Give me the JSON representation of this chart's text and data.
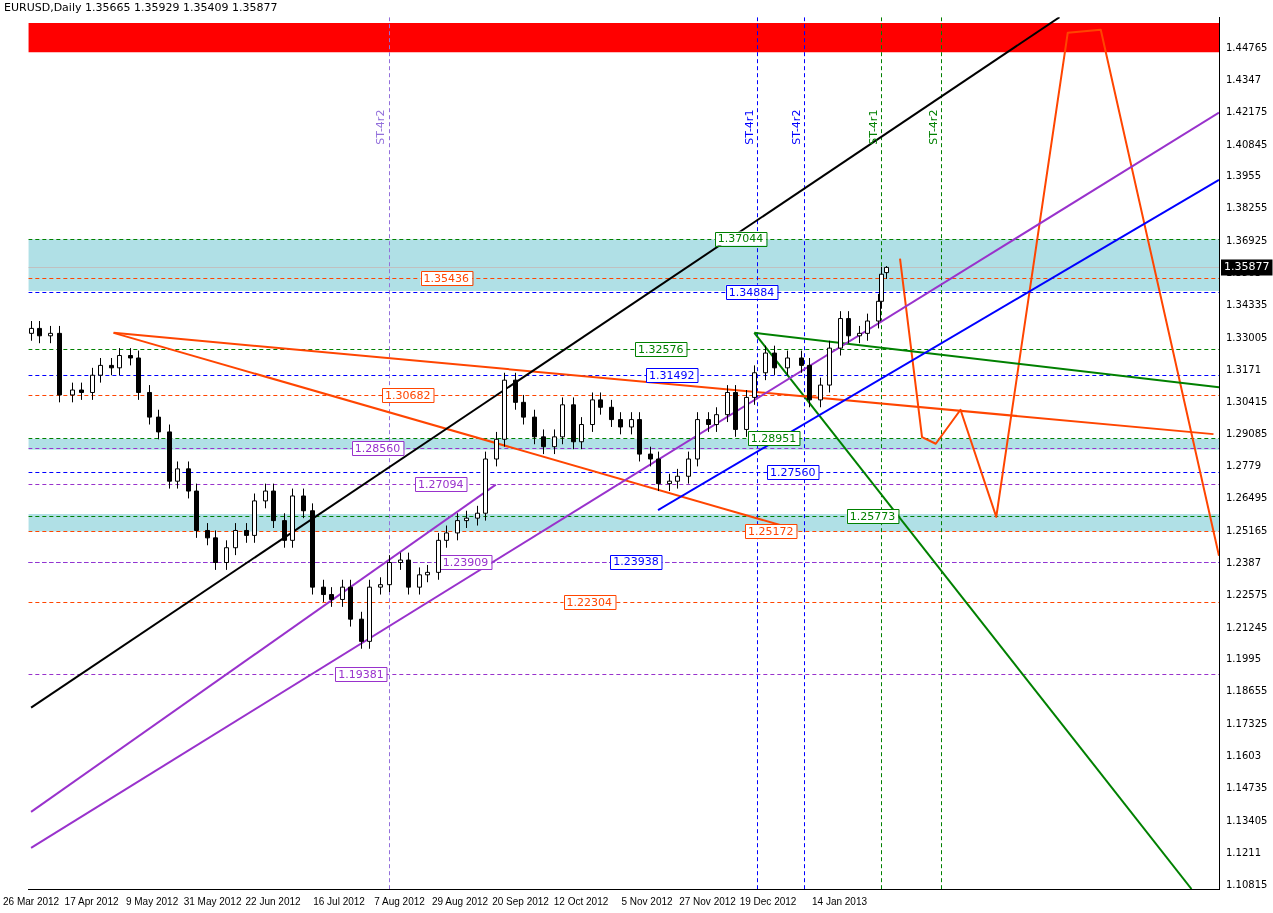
{
  "chart_data": {
    "type": "candlestick",
    "title": "EURUSD,Daily 1.35665 1.35929 1.35409 1.35877",
    "x": [
      "2012-03-26",
      "2012-03-29",
      "2012-04-02",
      "2012-04-05",
      "2012-04-10",
      "2012-04-13",
      "2012-04-17",
      "2012-04-20",
      "2012-04-24",
      "2012-04-27",
      "2012-05-01",
      "2012-05-04",
      "2012-05-08",
      "2012-05-11",
      "2012-05-15",
      "2012-05-18",
      "2012-05-22",
      "2012-05-25",
      "2012-05-29",
      "2012-06-01",
      "2012-06-05",
      "2012-06-08",
      "2012-06-12",
      "2012-06-15",
      "2012-06-19",
      "2012-06-22",
      "2012-06-26",
      "2012-06-29",
      "2012-07-03",
      "2012-07-06",
      "2012-07-10",
      "2012-07-13",
      "2012-07-17",
      "2012-07-20",
      "2012-07-24",
      "2012-07-27",
      "2012-07-31",
      "2012-08-03",
      "2012-08-07",
      "2012-08-10",
      "2012-08-14",
      "2012-08-17",
      "2012-08-21",
      "2012-08-24",
      "2012-08-28",
      "2012-08-31",
      "2012-09-04",
      "2012-09-07",
      "2012-09-11",
      "2012-09-14",
      "2012-09-18",
      "2012-09-21",
      "2012-09-25",
      "2012-09-28",
      "2012-10-02",
      "2012-10-05",
      "2012-10-09",
      "2012-10-12",
      "2012-10-16",
      "2012-10-19",
      "2012-10-23",
      "2012-10-26",
      "2012-10-30",
      "2012-11-02",
      "2012-11-06",
      "2012-11-09",
      "2012-11-13",
      "2012-11-16",
      "2012-11-20",
      "2012-11-23",
      "2012-11-27",
      "2012-11-30",
      "2012-12-04",
      "2012-12-07",
      "2012-12-11",
      "2012-12-14",
      "2012-12-18",
      "2012-12-21",
      "2012-12-26",
      "2012-12-31",
      "2013-01-03",
      "2013-01-07",
      "2013-01-10",
      "2013-01-14",
      "2013-01-17",
      "2013-01-21",
      "2013-01-24",
      "2013-01-28",
      "2013-01-29",
      "2013-01-31"
    ],
    "ohlc": [
      [
        1.332,
        1.337,
        1.329,
        1.334
      ],
      [
        1.334,
        1.337,
        1.328,
        1.331
      ],
      [
        1.331,
        1.335,
        1.328,
        1.332
      ],
      [
        1.332,
        1.335,
        1.304,
        1.307
      ],
      [
        1.307,
        1.312,
        1.304,
        1.309
      ],
      [
        1.309,
        1.312,
        1.305,
        1.308
      ],
      [
        1.308,
        1.318,
        1.305,
        1.315
      ],
      [
        1.315,
        1.322,
        1.312,
        1.319
      ],
      [
        1.319,
        1.322,
        1.315,
        1.318
      ],
      [
        1.318,
        1.326,
        1.315,
        1.323
      ],
      [
        1.323,
        1.326,
        1.319,
        1.322
      ],
      [
        1.322,
        1.325,
        1.305,
        1.308
      ],
      [
        1.308,
        1.311,
        1.295,
        1.298
      ],
      [
        1.298,
        1.301,
        1.289,
        1.292
      ],
      [
        1.292,
        1.295,
        1.269,
        1.272
      ],
      [
        1.272,
        1.28,
        1.269,
        1.277
      ],
      [
        1.277,
        1.28,
        1.265,
        1.268
      ],
      [
        1.268,
        1.271,
        1.249,
        1.252
      ],
      [
        1.252,
        1.255,
        1.246,
        1.249
      ],
      [
        1.249,
        1.252,
        1.236,
        1.239
      ],
      [
        1.239,
        1.248,
        1.236,
        1.245
      ],
      [
        1.245,
        1.255,
        1.242,
        1.252
      ],
      [
        1.252,
        1.255,
        1.247,
        1.25
      ],
      [
        1.25,
        1.267,
        1.247,
        1.264
      ],
      [
        1.264,
        1.271,
        1.261,
        1.268
      ],
      [
        1.268,
        1.271,
        1.253,
        1.256
      ],
      [
        1.256,
        1.259,
        1.245,
        1.248
      ],
      [
        1.248,
        1.269,
        1.245,
        1.266
      ],
      [
        1.266,
        1.269,
        1.257,
        1.26
      ],
      [
        1.26,
        1.263,
        1.226,
        1.229
      ],
      [
        1.229,
        1.232,
        1.223,
        1.226
      ],
      [
        1.226,
        1.229,
        1.221,
        1.224
      ],
      [
        1.224,
        1.232,
        1.221,
        1.229
      ],
      [
        1.229,
        1.232,
        1.213,
        1.216
      ],
      [
        1.216,
        1.219,
        1.204,
        1.207
      ],
      [
        1.207,
        1.232,
        1.204,
        1.229
      ],
      [
        1.229,
        1.233,
        1.226,
        1.23
      ],
      [
        1.23,
        1.242,
        1.227,
        1.239
      ],
      [
        1.239,
        1.243,
        1.236,
        1.24
      ],
      [
        1.24,
        1.243,
        1.226,
        1.229
      ],
      [
        1.229,
        1.237,
        1.226,
        1.234
      ],
      [
        1.234,
        1.238,
        1.231,
        1.235
      ],
      [
        1.235,
        1.251,
        1.232,
        1.248
      ],
      [
        1.248,
        1.254,
        1.245,
        1.251
      ],
      [
        1.251,
        1.259,
        1.248,
        1.256
      ],
      [
        1.256,
        1.26,
        1.253,
        1.257
      ],
      [
        1.257,
        1.262,
        1.254,
        1.259
      ],
      [
        1.259,
        1.284,
        1.256,
        1.281
      ],
      [
        1.281,
        1.292,
        1.278,
        1.289
      ],
      [
        1.289,
        1.316,
        1.286,
        1.313
      ],
      [
        1.313,
        1.316,
        1.301,
        1.304
      ],
      [
        1.304,
        1.307,
        1.295,
        1.298
      ],
      [
        1.298,
        1.301,
        1.287,
        1.29
      ],
      [
        1.29,
        1.293,
        1.283,
        1.286
      ],
      [
        1.286,
        1.293,
        1.283,
        1.29
      ],
      [
        1.29,
        1.306,
        1.287,
        1.303
      ],
      [
        1.303,
        1.306,
        1.285,
        1.288
      ],
      [
        1.288,
        1.298,
        1.285,
        1.295
      ],
      [
        1.295,
        1.308,
        1.292,
        1.305
      ],
      [
        1.305,
        1.308,
        1.299,
        1.302
      ],
      [
        1.302,
        1.305,
        1.294,
        1.297
      ],
      [
        1.297,
        1.3,
        1.291,
        1.294
      ],
      [
        1.294,
        1.3,
        1.291,
        1.297
      ],
      [
        1.297,
        1.3,
        1.28,
        1.283
      ],
      [
        1.283,
        1.286,
        1.278,
        1.281
      ],
      [
        1.281,
        1.284,
        1.268,
        1.271
      ],
      [
        1.271,
        1.275,
        1.268,
        1.272
      ],
      [
        1.272,
        1.277,
        1.269,
        1.274
      ],
      [
        1.274,
        1.284,
        1.271,
        1.281
      ],
      [
        1.281,
        1.3,
        1.278,
        1.297
      ],
      [
        1.297,
        1.3,
        1.292,
        1.295
      ],
      [
        1.295,
        1.302,
        1.292,
        1.299
      ],
      [
        1.299,
        1.311,
        1.296,
        1.308
      ],
      [
        1.308,
        1.311,
        1.29,
        1.293
      ],
      [
        1.293,
        1.309,
        1.29,
        1.306
      ],
      [
        1.306,
        1.319,
        1.303,
        1.316
      ],
      [
        1.316,
        1.327,
        1.313,
        1.324
      ],
      [
        1.324,
        1.327,
        1.315,
        1.318
      ],
      [
        1.318,
        1.325,
        1.315,
        1.322
      ],
      [
        1.322,
        1.325,
        1.316,
        1.319
      ],
      [
        1.319,
        1.322,
        1.302,
        1.305
      ],
      [
        1.305,
        1.314,
        1.302,
        1.311
      ],
      [
        1.311,
        1.329,
        1.308,
        1.326
      ],
      [
        1.326,
        1.341,
        1.323,
        1.338
      ],
      [
        1.338,
        1.341,
        1.328,
        1.331
      ],
      [
        1.331,
        1.335,
        1.328,
        1.332
      ],
      [
        1.332,
        1.34,
        1.329,
        1.337
      ],
      [
        1.337,
        1.348,
        1.334,
        1.345
      ],
      [
        1.345,
        1.359,
        1.342,
        1.356
      ],
      [
        1.35665,
        1.35929,
        1.35409,
        1.35877
      ]
    ],
    "series": [
      {
        "type": "line",
        "color": "#000000",
        "x": [
          "2012-03-26",
          "2013-04-04"
        ],
        "values": [
          1.1801,
          1.4603
        ]
      },
      {
        "type": "line",
        "color": "#9932cc",
        "x": [
          "2012-03-26",
          "2012-09-11"
        ],
        "values": [
          1.1378,
          1.2706
        ]
      },
      {
        "type": "line",
        "color": "#9932cc",
        "x": [
          "2012-03-26",
          "2013-06-01"
        ],
        "values": [
          1.1232,
          1.4216
        ]
      },
      {
        "type": "line",
        "color": "#0000ff",
        "x": [
          "2012-11-09",
          "2013-06-01"
        ],
        "values": [
          1.2603,
          1.3943
        ]
      },
      {
        "type": "line",
        "color": "#ff4500",
        "x": [
          "2012-04-25",
          "2013-05-30"
        ],
        "values": [
          1.3322,
          1.2911
        ]
      },
      {
        "type": "line",
        "color": "#ff4500",
        "x": [
          "2012-04-25",
          "2012-12-29"
        ],
        "values": [
          1.3322,
          1.2524
        ]
      },
      {
        "type": "line",
        "color": "#008000",
        "x": [
          "2012-12-14",
          "2013-06-01"
        ],
        "values": [
          1.3322,
          1.3101
        ]
      },
      {
        "type": "line",
        "color": "#008000",
        "x": [
          "2012-12-14",
          "2013-05-22"
        ],
        "values": [
          1.3322,
          1.1065
        ]
      },
      {
        "type": "line",
        "color": "#ff4500",
        "x": [
          "2013-02-05",
          "2013-02-13",
          "2013-02-18",
          "2013-02-27",
          "2013-03-12",
          "2013-04-07",
          "2013-04-19",
          "2013-06-01"
        ],
        "values": [
          1.3623,
          1.2899,
          1.2872,
          1.301,
          1.2575,
          1.454,
          1.4552,
          1.2417
        ]
      }
    ],
    "bands": [
      {
        "axis": "y",
        "from": 1.4461,
        "to": 1.4579,
        "color": "#ff0000"
      },
      {
        "axis": "y",
        "from": 1.3492,
        "to": 1.3702,
        "color": "#b0e0e6"
      },
      {
        "axis": "y",
        "from": 1.2848,
        "to": 1.2892,
        "color": "#b0e0e6"
      },
      {
        "axis": "y",
        "from": 1.2516,
        "to": 1.2587,
        "color": "#b0e0e6"
      }
    ],
    "ref_lines": [
      {
        "axis": "y",
        "value": 1.37044,
        "color": "#008000",
        "line_style": "dashed"
      },
      {
        "axis": "y",
        "value": 1.35436,
        "color": "#ff4500",
        "line_style": "dashed"
      },
      {
        "axis": "y",
        "value": 1.34884,
        "color": "#0000ff",
        "line_style": "dashed"
      },
      {
        "axis": "y",
        "value": 1.32576,
        "color": "#008000",
        "line_style": "dashed"
      },
      {
        "axis": "y",
        "value": 1.31492,
        "color": "#0000ff",
        "line_style": "dashed"
      },
      {
        "axis": "y",
        "value": 1.30682,
        "color": "#ff4500",
        "line_style": "dashed"
      },
      {
        "axis": "y",
        "value": 1.28951,
        "color": "#008000",
        "line_style": "dashed"
      },
      {
        "axis": "y",
        "value": 1.2856,
        "color": "#9932cc",
        "line_style": "dashed"
      },
      {
        "axis": "y",
        "value": 1.2756,
        "color": "#0000ff",
        "line_style": "dashed"
      },
      {
        "axis": "y",
        "value": 1.27094,
        "color": "#9932cc",
        "line_style": "dashed"
      },
      {
        "axis": "y",
        "value": 1.25773,
        "color": "#008000",
        "line_style": "dashed"
      },
      {
        "axis": "y",
        "value": 1.25172,
        "color": "#ff4500",
        "line_style": "dashed"
      },
      {
        "axis": "y",
        "value": 1.23938,
        "color": "#0000ff",
        "line_style": "dashed"
      },
      {
        "axis": "y",
        "value": 1.23909,
        "color": "#9932cc",
        "line_style": "dashed"
      },
      {
        "axis": "y",
        "value": 1.22304,
        "color": "#ff4500",
        "line_style": "dashed"
      },
      {
        "axis": "y",
        "value": 1.19381,
        "color": "#9932cc",
        "line_style": "dashed"
      },
      {
        "axis": "y",
        "value": 1.35877,
        "color": "#c0c0c0",
        "line_style": "solid",
        "label": "1.35877"
      },
      {
        "axis": "x",
        "value": "2012-08-03",
        "color": "#9370db",
        "line_style": "dashed",
        "label": "ST-4r2"
      },
      {
        "axis": "x",
        "value": "2012-12-15",
        "color": "#0000ff",
        "line_style": "dashed",
        "label": "ST-4r1"
      },
      {
        "axis": "x",
        "value": "2013-01-01",
        "color": "#0000ff",
        "line_style": "dashed",
        "label": "ST-4r2"
      },
      {
        "axis": "x",
        "value": "2013-01-29",
        "color": "#008000",
        "line_style": "dashed",
        "label": "ST-4r1"
      },
      {
        "axis": "x",
        "value": "2013-02-20",
        "color": "#008000",
        "line_style": "dashed",
        "label": "ST-4r2"
      }
    ],
    "annotations": [
      {
        "text": "1.37044",
        "x": "2012-12-09",
        "y": 1.37044
      },
      {
        "text": "1.35436",
        "x": "2012-08-24",
        "y": 1.35436
      },
      {
        "text": "1.34884",
        "x": "2012-12-13",
        "y": 1.34884
      },
      {
        "text": "1.32576",
        "x": "2012-11-10",
        "y": 1.32576
      },
      {
        "text": "1.31492",
        "x": "2012-11-14",
        "y": 1.31492
      },
      {
        "text": "1.30682",
        "x": "2012-08-10",
        "y": 1.30682
      },
      {
        "text": "1.28951",
        "x": "2012-12-21",
        "y": 1.28951
      },
      {
        "text": "1.28560",
        "x": "2012-07-30",
        "y": 1.2856
      },
      {
        "text": "1.27560",
        "x": "2012-12-28",
        "y": 1.2756
      },
      {
        "text": "1.27094",
        "x": "2012-08-22",
        "y": 1.27094
      },
      {
        "text": "1.25773",
        "x": "2013-01-26",
        "y": 1.25773
      },
      {
        "text": "1.25172",
        "x": "2012-12-20",
        "y": 1.25172
      },
      {
        "text": "1.23938",
        "x": "2012-11-01",
        "y": 1.23938
      },
      {
        "text": "1.23909",
        "x": "2012-08-31",
        "y": 1.23909
      },
      {
        "text": "1.22304",
        "x": "2012-10-15",
        "y": 1.22304
      },
      {
        "text": "1.19381",
        "x": "2012-07-24",
        "y": 1.19381
      }
    ],
    "xlim": [
      "2012-03-25",
      "2013-06-01"
    ],
    "xticks": [
      {
        "value": "2012-03-26",
        "label": "26 Mar 2012"
      },
      {
        "value": "2012-04-17",
        "label": "17 Apr 2012"
      },
      {
        "value": "2012-05-09",
        "label": "9 May 2012"
      },
      {
        "value": "2012-05-31",
        "label": "31 May 2012"
      },
      {
        "value": "2012-06-22",
        "label": "22 Jun 2012"
      },
      {
        "value": "2012-07-16",
        "label": "16 Jul 2012"
      },
      {
        "value": "2012-08-07",
        "label": "7 Aug 2012"
      },
      {
        "value": "2012-08-29",
        "label": "29 Aug 2012"
      },
      {
        "value": "2012-09-20",
        "label": "20 Sep 2012"
      },
      {
        "value": "2012-10-12",
        "label": "12 Oct 2012"
      },
      {
        "value": "2012-11-05",
        "label": "5 Nov 2012"
      },
      {
        "value": "2012-11-27",
        "label": "27 Nov 2012"
      },
      {
        "value": "2012-12-19",
        "label": "19 Dec 2012"
      },
      {
        "value": "2013-01-14",
        "label": "14 Jan 2013"
      }
    ],
    "ylim": [
      1.1065,
      1.4603
    ],
    "yticks": [
      1.44765,
      1.4347,
      1.42175,
      1.40845,
      1.3955,
      1.38255,
      1.36925,
      1.3563,
      1.34335,
      1.33005,
      1.3171,
      1.30415,
      1.29085,
      1.2779,
      1.26495,
      1.25165,
      1.2387,
      1.22575,
      1.21245,
      1.1995,
      1.18655,
      1.17325,
      1.1603,
      1.14735,
      1.13405,
      1.1211,
      1.10815
    ],
    "grid": false,
    "legend": false
  }
}
